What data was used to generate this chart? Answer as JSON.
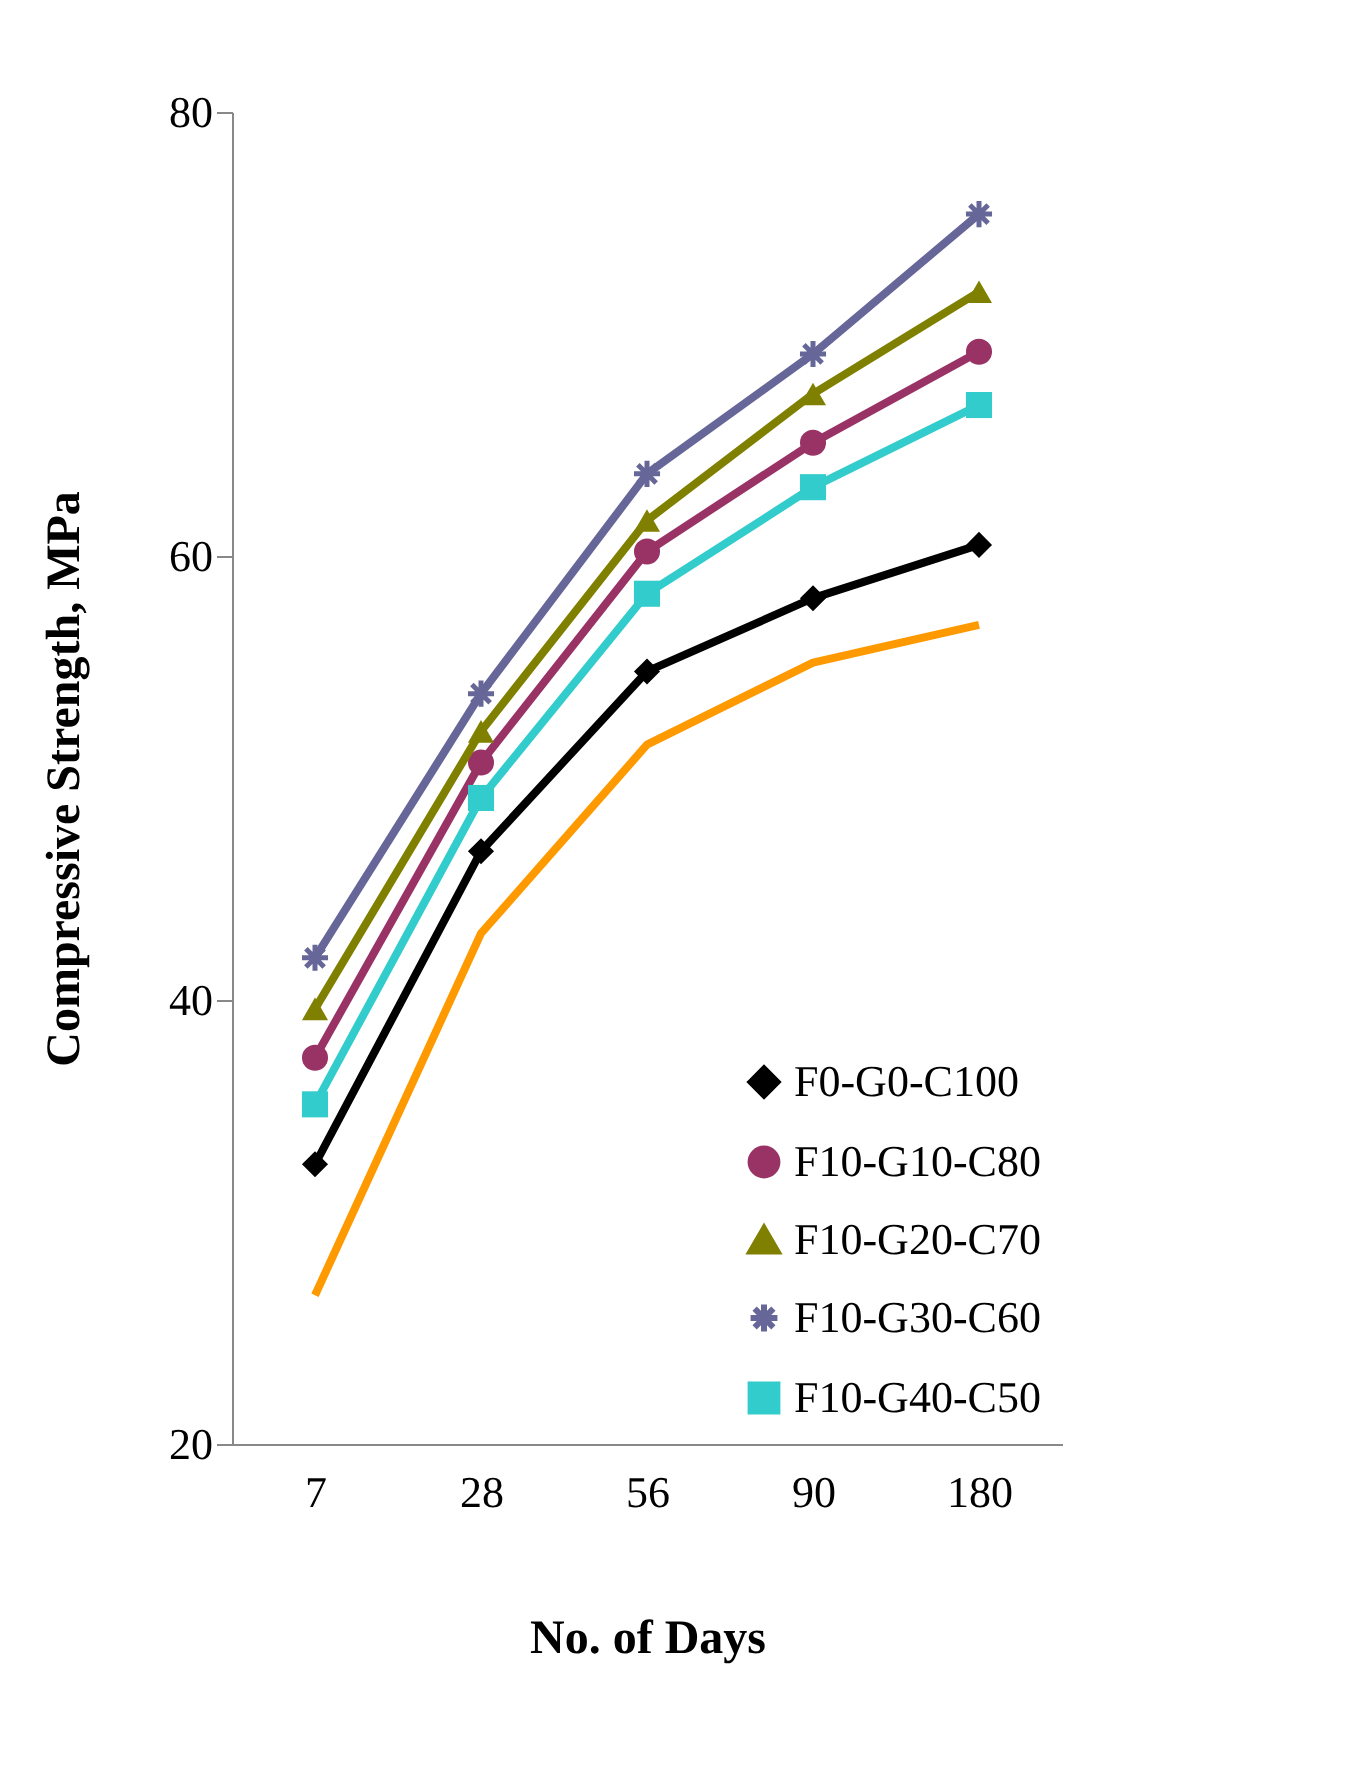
{
  "chart_data": {
    "type": "line",
    "xlabel": "No. of Days",
    "ylabel": "Compressive Strength, MPa",
    "categories": [
      "7",
      "28",
      "56",
      "90",
      "180"
    ],
    "ylim": [
      20,
      80
    ],
    "yticks": [
      20,
      40,
      60,
      80
    ],
    "grid": false,
    "legend": "bottom right",
    "line_style": "solid",
    "series": [
      {
        "name": "F0-G0-C100",
        "color": "#000000",
        "marker": "diamond",
        "values": [
          32.6,
          46.7,
          54.8,
          58.1,
          60.5
        ]
      },
      {
        "name": "F10-G10-C80",
        "color": "#993366",
        "marker": "circle",
        "values": [
          37.4,
          50.7,
          60.2,
          65.1,
          69.2
        ]
      },
      {
        "name": "F10-G20-C70",
        "color": "#808000",
        "marker": "triangle",
        "values": [
          39.6,
          52.1,
          61.6,
          67.3,
          71.9
        ]
      },
      {
        "name": "F10-G30-C60",
        "color": "#666699",
        "marker": "cross",
        "values": [
          41.9,
          53.8,
          63.7,
          69.1,
          75.4
        ]
      },
      {
        "name": "F10-G40-C50",
        "color": "#33cccc",
        "marker": "square",
        "values": [
          35.3,
          49.1,
          58.3,
          63.1,
          66.8
        ]
      },
      {
        "color": "#ff9900",
        "marker": "none",
        "values": [
          26.7,
          43.0,
          51.5,
          55.2,
          56.9
        ]
      }
    ]
  }
}
